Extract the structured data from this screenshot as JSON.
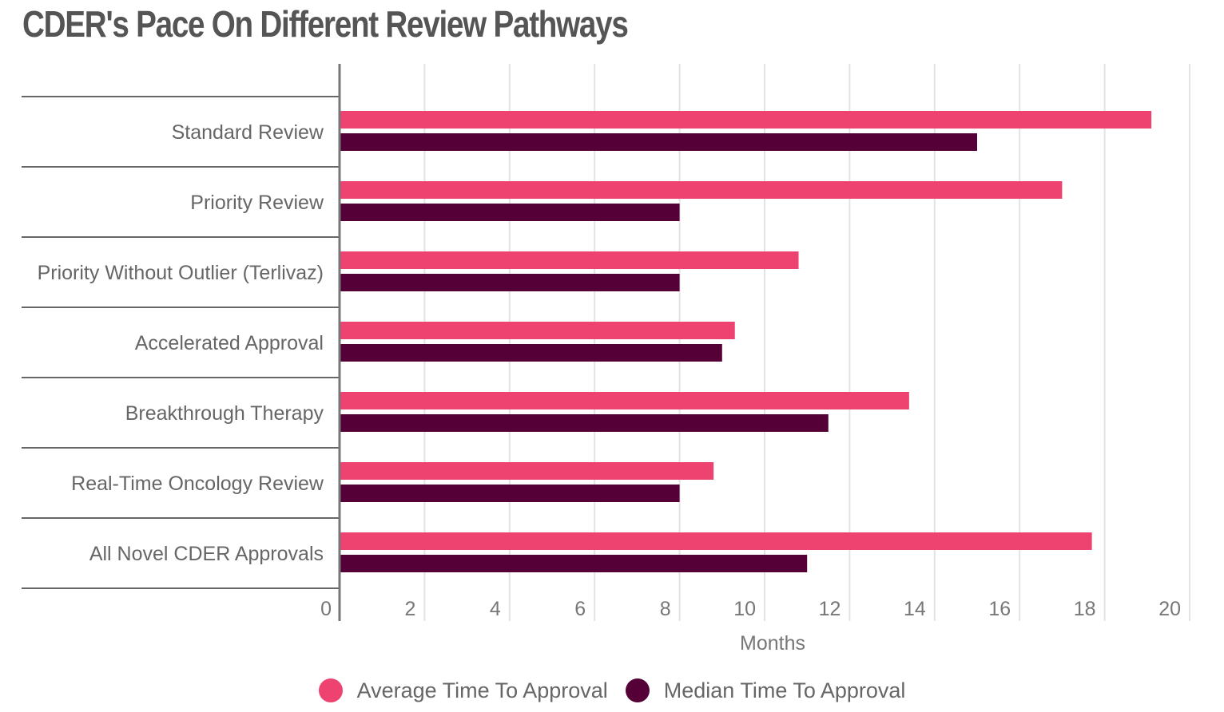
{
  "title": "CDER's Pace On Different Review Pathways",
  "colors": {
    "average": "#ee4370",
    "median": "#560038",
    "grid": "#e3e3e3",
    "axis": "#777777",
    "separator": "#666666"
  },
  "chart_data": {
    "type": "bar",
    "orientation": "horizontal",
    "title": "CDER's Pace On Different Review Pathways",
    "xlabel": "Months",
    "ylabel": "",
    "xlim": [
      0,
      20
    ],
    "xticks": [
      0,
      2,
      4,
      6,
      8,
      10,
      12,
      14,
      16,
      18,
      20
    ],
    "grid": true,
    "legend_position": "bottom",
    "categories": [
      "Standard Review",
      "Priority Review",
      "Priority Without Outlier (Terlivaz)",
      "Accelerated Approval",
      "Breakthrough Therapy",
      "Real-Time Oncology Review",
      "All Novel CDER Approvals"
    ],
    "series": [
      {
        "name": "Average Time To Approval",
        "color": "#ee4370",
        "values": [
          19.1,
          17.0,
          10.8,
          9.3,
          13.4,
          8.8,
          17.7
        ]
      },
      {
        "name": "Median Time To Approval",
        "color": "#560038",
        "values": [
          15.0,
          8.0,
          8.0,
          9.0,
          11.5,
          8.0,
          11.0
        ]
      }
    ]
  }
}
